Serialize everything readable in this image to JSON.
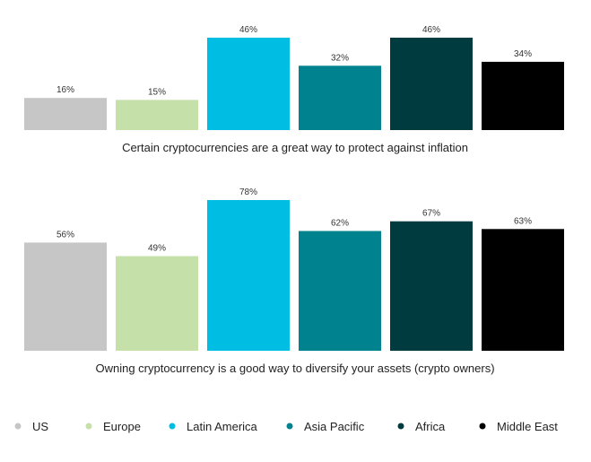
{
  "chart_data": [
    {
      "type": "bar",
      "categories": [
        "US",
        "Europe",
        "Latin America",
        "Asia Pacific",
        "Africa",
        "Middle East"
      ],
      "values": [
        16,
        15,
        46,
        32,
        46,
        34
      ],
      "value_labels": [
        "16%",
        "15%",
        "46%",
        "32%",
        "46%",
        "34%"
      ],
      "xlabel": "Certain cryptocurrencies are a great way to protect against inflation",
      "ylim": [
        0,
        46
      ],
      "grid": false,
      "legend": "bottom"
    },
    {
      "type": "bar",
      "categories": [
        "US",
        "Europe",
        "Latin America",
        "Asia Pacific",
        "Africa",
        "Middle East"
      ],
      "values": [
        56,
        49,
        78,
        62,
        67,
        63
      ],
      "value_labels": [
        "56%",
        "49%",
        "78%",
        "62%",
        "67%",
        "63%"
      ],
      "xlabel": "Owning cryptocurrency is a good way to diversify your assets (crypto owners)",
      "ylim": [
        0,
        78
      ],
      "grid": false,
      "legend": "bottom"
    }
  ],
  "colors": {
    "US": "#c6c6c6",
    "Europe": "#c5e0a8",
    "Latin America": "#00bde3",
    "Asia Pacific": "#00838f",
    "Africa": "#003c3f",
    "Middle East": "#000000"
  },
  "legend": {
    "items": [
      "US",
      "Europe",
      "Latin America",
      "Asia Pacific",
      "Africa",
      "Middle East"
    ]
  }
}
